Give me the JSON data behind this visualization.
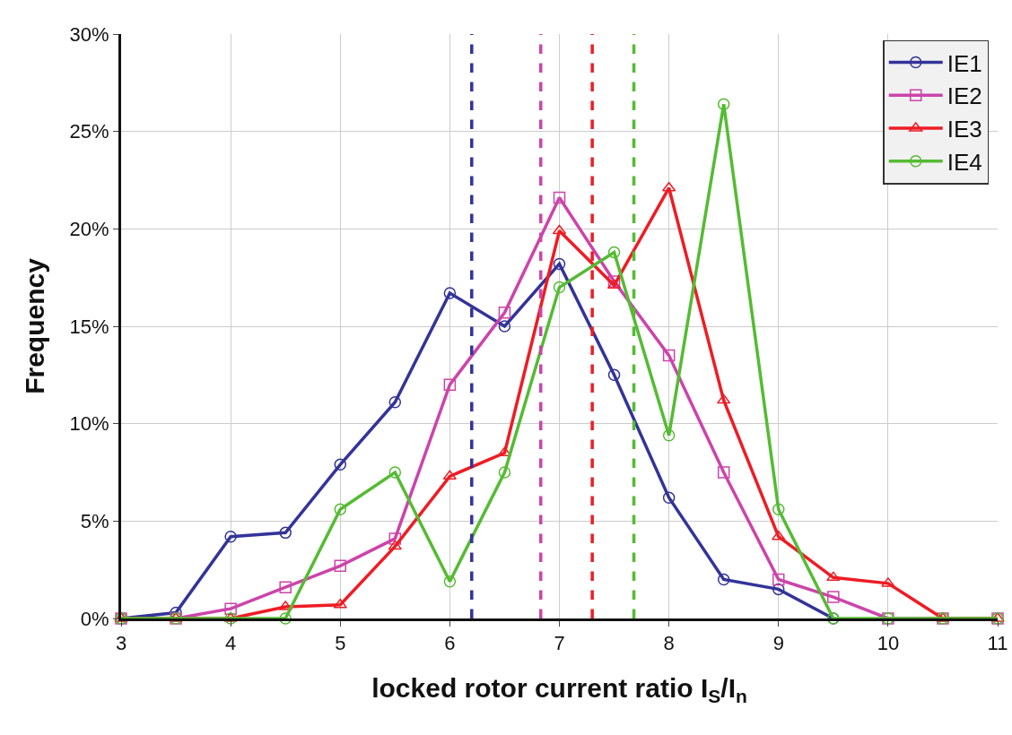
{
  "chart_data": {
    "type": "line",
    "xlabel": "locked rotor current ratio I$_{S}$/I$_{n}$",
    "ylabel": "Frequency",
    "x": [
      3,
      3.5,
      4,
      4.5,
      5,
      5.5,
      6,
      6.5,
      7,
      7.5,
      8,
      8.5,
      9,
      9.5,
      10,
      10.5,
      11
    ],
    "series": [
      {
        "name": "IE1",
        "color": "#333399",
        "marker": "circle",
        "values": [
          0,
          0.3,
          4.2,
          4.4,
          7.9,
          11.1,
          16.7,
          15.0,
          18.2,
          12.5,
          6.2,
          2.0,
          1.5,
          0,
          null,
          null,
          null
        ]
      },
      {
        "name": "IE2",
        "color": "#cc44aa",
        "marker": "square",
        "values": [
          0,
          0,
          0.5,
          1.6,
          2.7,
          4.1,
          12.0,
          15.7,
          21.6,
          17.3,
          13.5,
          7.5,
          2.0,
          1.1,
          0,
          0,
          0
        ]
      },
      {
        "name": "IE3",
        "color": "#ee1c24",
        "marker": "triangle",
        "values": [
          0,
          0,
          0,
          0.6,
          0.7,
          3.7,
          7.3,
          8.5,
          19.9,
          17.1,
          22.1,
          11.2,
          4.2,
          2.1,
          1.8,
          0,
          0
        ]
      },
      {
        "name": "IE4",
        "color": "#55bb33",
        "marker": "circle",
        "values": [
          0,
          0,
          0,
          0,
          5.6,
          7.5,
          1.9,
          7.5,
          17.0,
          18.8,
          9.4,
          26.4,
          5.6,
          0,
          0,
          0,
          0
        ]
      }
    ],
    "ref_lines": [
      {
        "axis": "x",
        "value": 6.2,
        "color": "#333399",
        "line_style": "dashed"
      },
      {
        "axis": "x",
        "value": 6.83,
        "color": "#cc44aa",
        "line_style": "dashed"
      },
      {
        "axis": "x",
        "value": 7.3,
        "color": "#ee1c24",
        "line_style": "dashed"
      },
      {
        "axis": "x",
        "value": 7.68,
        "color": "#55bb33",
        "line_style": "dashed"
      }
    ],
    "xlim": [
      3,
      11
    ],
    "xticks": [
      3,
      4,
      5,
      6,
      7,
      8,
      9,
      10,
      11
    ],
    "ylim": [
      0,
      30
    ],
    "yticks": [
      {
        "value": 0,
        "label": "0%"
      },
      {
        "value": 5,
        "label": "5%"
      },
      {
        "value": 10,
        "label": "10%"
      },
      {
        "value": 15,
        "label": "15%"
      },
      {
        "value": 20,
        "label": "20%"
      },
      {
        "value": 25,
        "label": "25%"
      },
      {
        "value": 30,
        "label": "30%"
      }
    ],
    "grid": true,
    "legend": "top right",
    "line_style": "solid"
  }
}
